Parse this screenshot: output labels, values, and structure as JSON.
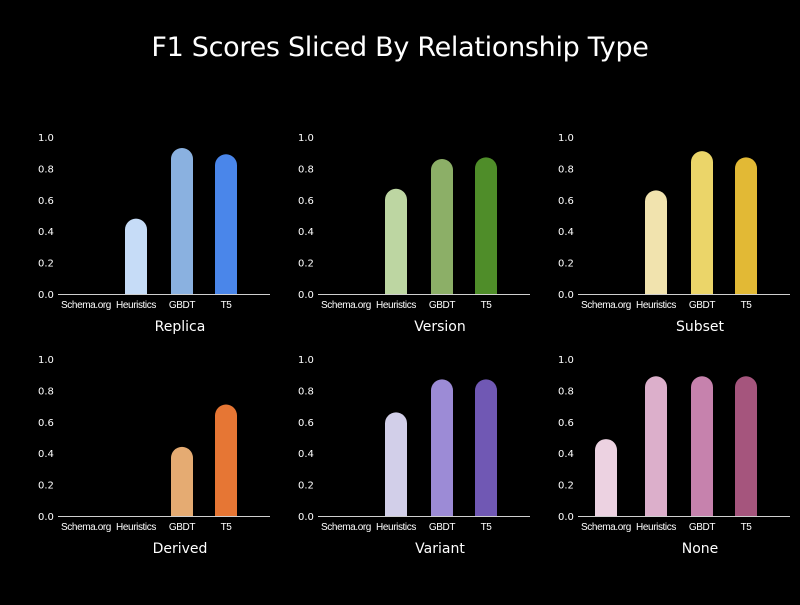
{
  "title": "F1 Scores Sliced By Relationship Type",
  "chart_data": [
    {
      "type": "bar",
      "title": "Replica",
      "categories": [
        "Schema.org",
        "Heuristics",
        "GBDT",
        "T5"
      ],
      "values": [
        0.0,
        0.48,
        0.93,
        0.89
      ],
      "colors": [
        "#c6dcf7",
        "#c6dcf7",
        "#8ab1e0",
        "#4a86ea"
      ],
      "yticks": [
        "0.0",
        "0.2",
        "0.4",
        "0.6",
        "0.8",
        "1.0"
      ],
      "ylim": [
        0,
        1.0
      ]
    },
    {
      "type": "bar",
      "title": "Version",
      "categories": [
        "Schema.org",
        "Heuristics",
        "GBDT",
        "T5"
      ],
      "values": [
        0.0,
        0.67,
        0.86,
        0.87
      ],
      "colors": [
        "#bdd6a2",
        "#bdd6a2",
        "#8caf67",
        "#4f8d29"
      ],
      "yticks": [
        "0.0",
        "0.2",
        "0.4",
        "0.6",
        "0.8",
        "1.0"
      ],
      "ylim": [
        0,
        1.0
      ]
    },
    {
      "type": "bar",
      "title": "Subset",
      "categories": [
        "Schema.org",
        "Heuristics",
        "GBDT",
        "T5"
      ],
      "values": [
        0.0,
        0.66,
        0.91,
        0.87
      ],
      "colors": [
        "#f1e3ae",
        "#f1e3ae",
        "#ebd569",
        "#e2b935"
      ],
      "yticks": [
        "0.0",
        "0.2",
        "0.4",
        "0.6",
        "0.8",
        "1.0"
      ],
      "ylim": [
        0,
        1.0
      ]
    },
    {
      "type": "bar",
      "title": "Derived",
      "categories": [
        "Schema.org",
        "Heuristics",
        "GBDT",
        "T5"
      ],
      "values": [
        0.0,
        0.0,
        0.44,
        0.71
      ],
      "colors": [
        "#e5ab72",
        "#e5ab72",
        "#e5ab72",
        "#e67634"
      ],
      "yticks": [
        "0.0",
        "0.2",
        "0.4",
        "0.6",
        "0.8",
        "1.0"
      ],
      "ylim": [
        0,
        1.0
      ]
    },
    {
      "type": "bar",
      "title": "Variant",
      "categories": [
        "Schema.org",
        "Heuristics",
        "GBDT",
        "T5"
      ],
      "values": [
        0.0,
        0.66,
        0.87,
        0.87
      ],
      "colors": [
        "#d2cfe9",
        "#d2cfe9",
        "#9c8bd6",
        "#7058b4"
      ],
      "yticks": [
        "0.0",
        "0.2",
        "0.4",
        "0.6",
        "0.8",
        "1.0"
      ],
      "ylim": [
        0,
        1.0
      ]
    },
    {
      "type": "bar",
      "title": "None",
      "categories": [
        "Schema.org",
        "Heuristics",
        "GBDT",
        "T5"
      ],
      "values": [
        0.49,
        0.89,
        0.89,
        0.89
      ],
      "colors": [
        "#ecd2e1",
        "#dcafcb",
        "#c682ad",
        "#a5557d"
      ],
      "yticks": [
        "0.0",
        "0.2",
        "0.4",
        "0.6",
        "0.8",
        "1.0"
      ],
      "ylim": [
        0,
        1.0
      ]
    }
  ]
}
